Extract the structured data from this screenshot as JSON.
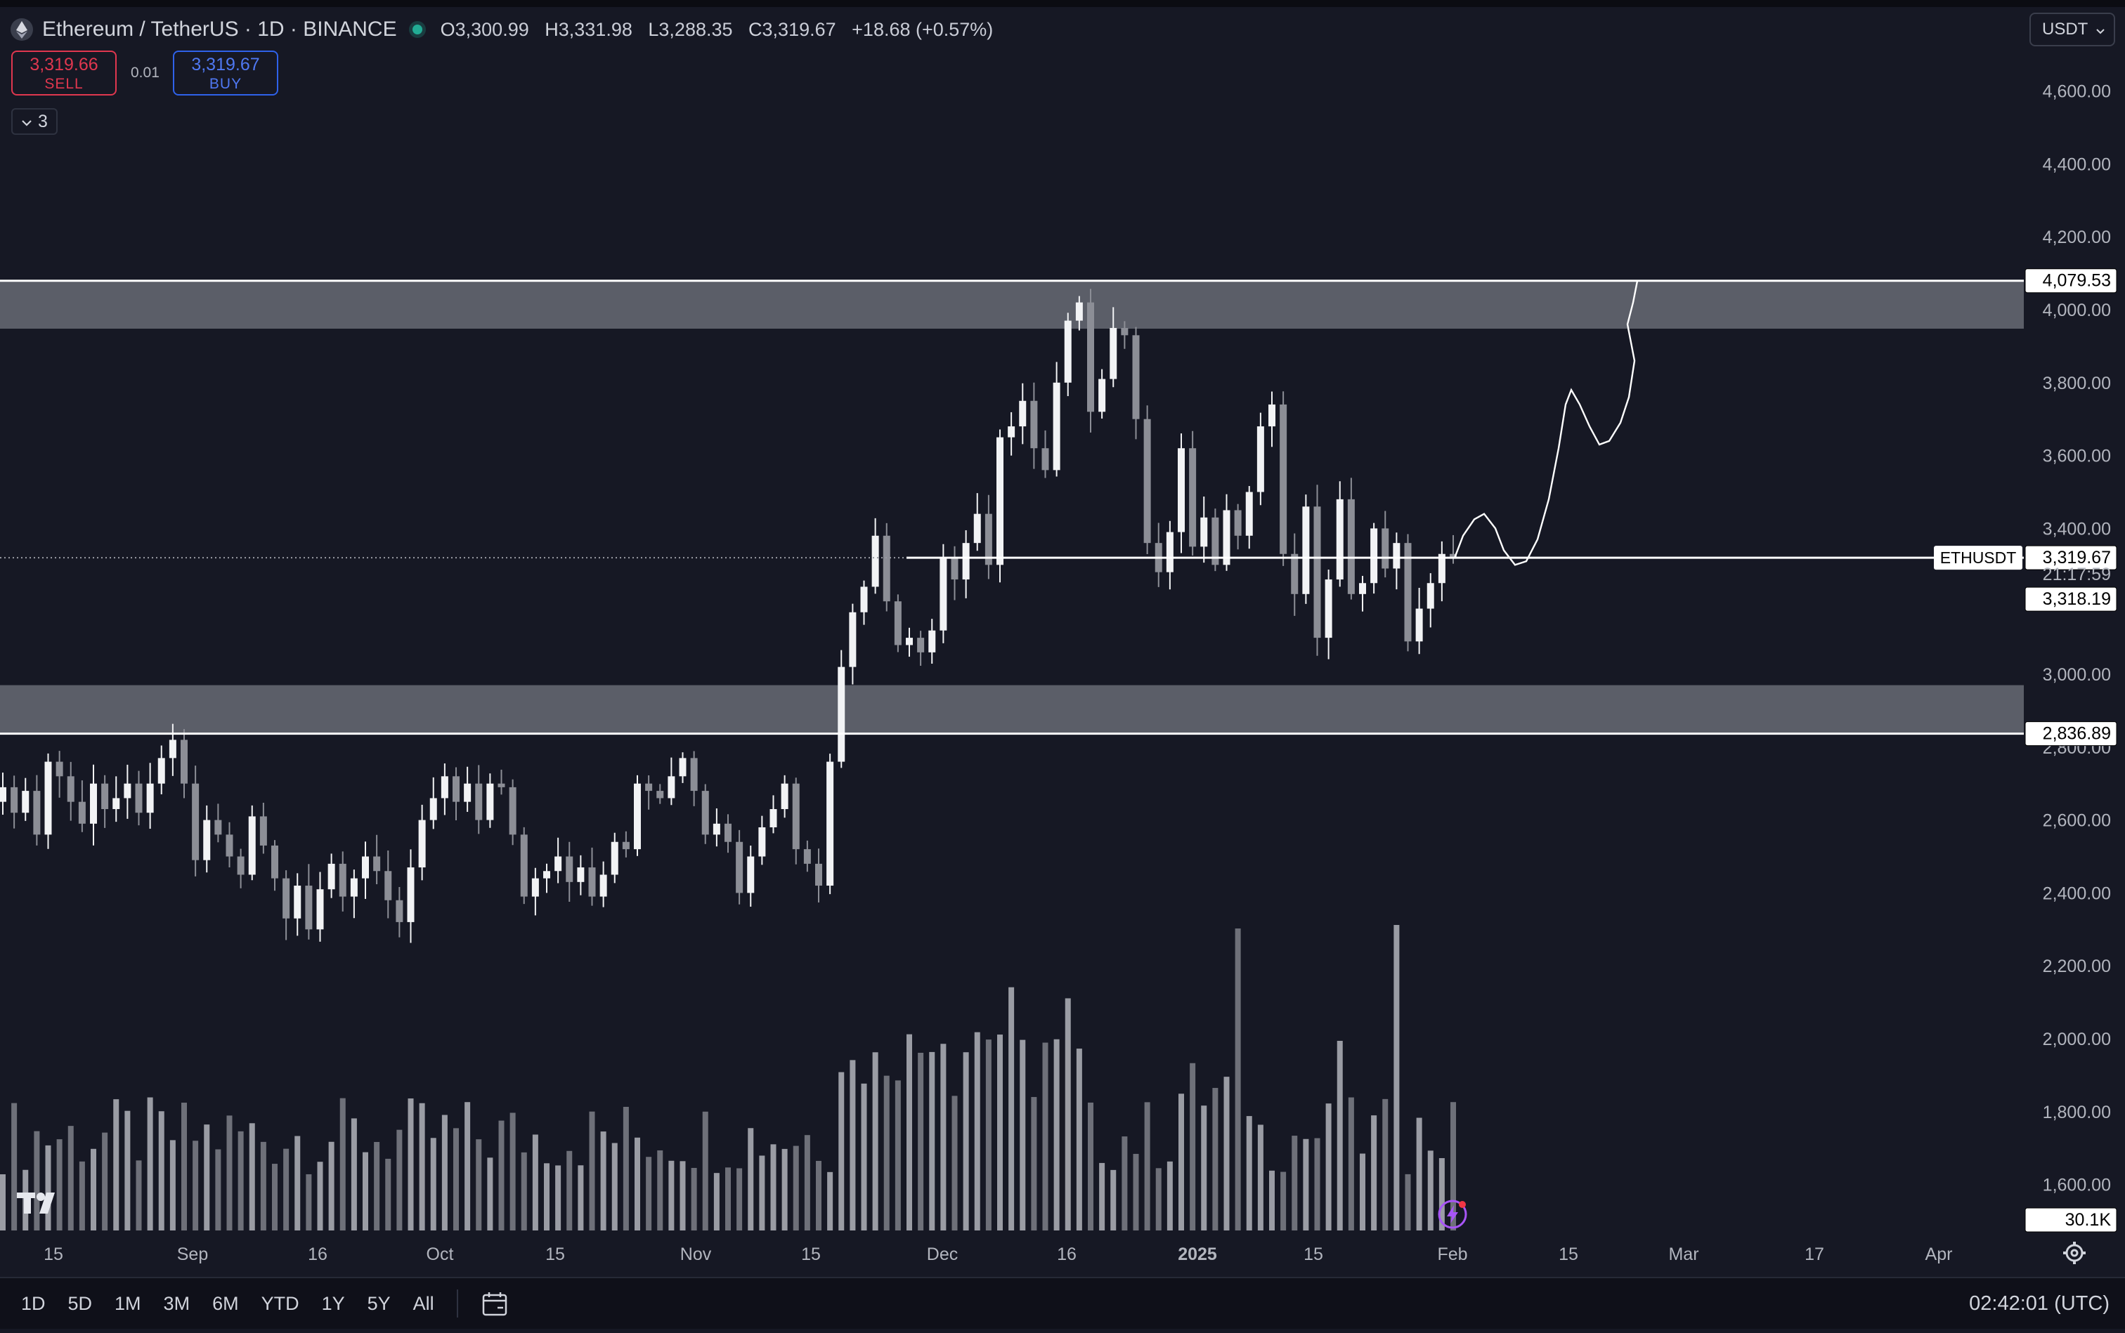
{
  "header": {
    "symbol_title": "Ethereum / TetherUS · 1D · BINANCE",
    "ohlc": {
      "o_label": "O",
      "open": "3,300.99",
      "h_label": "H",
      "high": "3,331.98",
      "l_label": "L",
      "low": "3,288.35",
      "c_label": "C",
      "close": "3,319.67",
      "change": "+18.68 (+0.57%)"
    },
    "currency": "USDT"
  },
  "trade": {
    "sell_price": "3,319.66",
    "sell_label": "SELL",
    "buy_price": "3,319.67",
    "buy_label": "BUY",
    "spread": "0.01"
  },
  "indicators": {
    "count": "3"
  },
  "price_axis": {
    "ticks": [
      "4,600.00",
      "4,400.00",
      "4,200.00",
      "4,000.00",
      "3,800.00",
      "3,600.00",
      "3,400.00",
      "3,000.00",
      "2,800.00",
      "2,600.00",
      "2,400.00",
      "2,200.00",
      "2,000.00",
      "1,800.00",
      "1,600.00"
    ],
    "tick_values": [
      4600,
      4400,
      4200,
      4000,
      3800,
      3600,
      3400,
      3000,
      2800,
      2600,
      2400,
      2200,
      2000,
      1800,
      1600
    ],
    "labels": {
      "resistance": "4,079.53",
      "last_price": "3,319.67",
      "countdown": "21:17:59",
      "prev_close": "3,318.19",
      "support": "2,836.89",
      "volume": "30.1K"
    },
    "symbol_tag": "ETHUSDT"
  },
  "time_axis": {
    "labels": [
      "15",
      "Sep",
      "16",
      "Oct",
      "15",
      "Nov",
      "15",
      "Dec",
      "16",
      "2025",
      "15",
      "Feb",
      "15",
      "Mar",
      "17",
      "Apr"
    ],
    "bold": [
      "2025"
    ]
  },
  "bottom_bar": {
    "ranges": [
      "1D",
      "5D",
      "1M",
      "3M",
      "6M",
      "YTD",
      "1Y",
      "5Y",
      "All"
    ],
    "clock": "02:42:01 (UTC)"
  },
  "chart_data": {
    "type": "candlestick",
    "symbol": "ETHUSDT",
    "interval": "1D",
    "ylim": [
      1540,
      4680
    ],
    "zones": [
      {
        "name": "resistance",
        "from": 3948,
        "to": 4079.53
      },
      {
        "name": "support",
        "from": 2836.89,
        "to": 2970
      }
    ],
    "last_price": 3319.67,
    "candle_closes": [
      2690,
      2620,
      2680,
      2560,
      2760,
      2720,
      2650,
      2590,
      2700,
      2630,
      2660,
      2700,
      2620,
      2700,
      2770,
      2820,
      2700,
      2490,
      2600,
      2560,
      2500,
      2450,
      2610,
      2530,
      2440,
      2330,
      2420,
      2300,
      2410,
      2480,
      2390,
      2440,
      2500,
      2460,
      2380,
      2320,
      2470,
      2600,
      2660,
      2720,
      2650,
      2700,
      2600,
      2700,
      2690,
      2560,
      2390,
      2440,
      2460,
      2500,
      2430,
      2470,
      2390,
      2450,
      2540,
      2520,
      2700,
      2680,
      2660,
      2720,
      2770,
      2680,
      2560,
      2590,
      2540,
      2400,
      2500,
      2580,
      2630,
      2700,
      2520,
      2480,
      2420,
      2760,
      3020,
      3170,
      3240,
      3380,
      3200,
      3080,
      3100,
      3060,
      3120,
      3320,
      3260,
      3360,
      3440,
      3300,
      3650,
      3680,
      3750,
      3620,
      3560,
      3800,
      3970,
      4020,
      3720,
      3810,
      3950,
      3930,
      3700,
      3360,
      3280,
      3390,
      3620,
      3350,
      3430,
      3300,
      3450,
      3380,
      3500,
      3680,
      3740,
      3330,
      3220,
      3460,
      3100,
      3260,
      3480,
      3220,
      3250,
      3400,
      3290,
      3360,
      3090,
      3180,
      3250,
      3330,
      3319
    ],
    "projection_path": "scribble from 3,319 up to ~3,440, pullback ~3,300, rally to ~3,780, dip ~3,630, then to ~4,079 near Feb 20"
  }
}
